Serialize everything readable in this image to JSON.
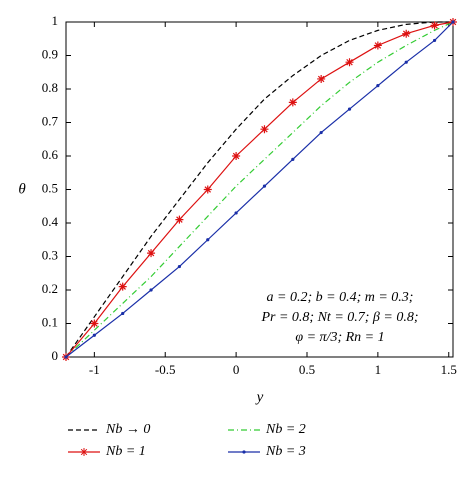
{
  "chart_data": {
    "type": "line",
    "x_label": "y",
    "y_label": "θ",
    "x": [
      -1.2,
      -1.0,
      -0.8,
      -0.6,
      -0.4,
      -0.2,
      0,
      0.2,
      0.4,
      0.6,
      0.8,
      1.0,
      1.2,
      1.4,
      1.53
    ],
    "series": [
      {
        "name": "Nb → 0",
        "color": "#000000",
        "style": "dashed",
        "values": [
          0,
          0.12,
          0.24,
          0.36,
          0.47,
          0.58,
          0.68,
          0.77,
          0.84,
          0.9,
          0.945,
          0.975,
          0.993,
          1.0,
          1.0
        ]
      },
      {
        "name": "Nb = 2",
        "color": "#33cc33",
        "style": "dashdot",
        "values": [
          0,
          0.08,
          0.16,
          0.24,
          0.33,
          0.42,
          0.51,
          0.59,
          0.67,
          0.75,
          0.82,
          0.88,
          0.93,
          0.975,
          1.0
        ]
      },
      {
        "name": "Nb = 1",
        "color": "#dd1111",
        "style": "solid",
        "marker": "star",
        "values": [
          0,
          0.1,
          0.21,
          0.31,
          0.41,
          0.5,
          0.6,
          0.68,
          0.76,
          0.83,
          0.88,
          0.93,
          0.965,
          0.99,
          1.0
        ]
      },
      {
        "name": "Nb = 3",
        "color": "#1a2fa8",
        "style": "solid",
        "marker": "dot",
        "values": [
          0,
          0.065,
          0.13,
          0.2,
          0.27,
          0.35,
          0.43,
          0.51,
          0.59,
          0.67,
          0.74,
          0.81,
          0.88,
          0.945,
          1.0
        ]
      }
    ],
    "xlim": [
      -1.2,
      1.53
    ],
    "ylim": [
      0,
      1
    ],
    "xticks": [
      -1,
      -0.5,
      0,
      0.5,
      1,
      1.5
    ],
    "yticks": [
      0,
      0.1,
      0.2,
      0.3,
      0.4,
      0.5,
      0.6,
      0.7,
      0.8,
      0.9,
      1
    ],
    "annotations": [
      "a = 0.2; b = 0.4; m = 0.3;",
      "Pr = 0.8; Nt = 0.7; β = 0.8;",
      "φ = π/3; Rn = 1"
    ]
  }
}
